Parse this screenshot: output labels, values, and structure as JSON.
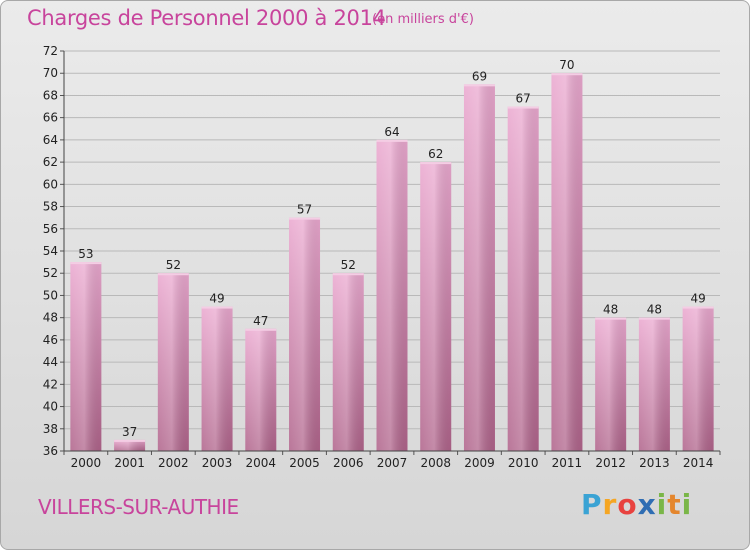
{
  "title": "Charges de Personnel 2000 à 2014",
  "subtitle": "(en milliers d'€)",
  "place": "VILLERS-SUR-AUTHIE",
  "logo": {
    "text": "Proxiti",
    "colors": [
      "#3aa3d4",
      "#f5a623",
      "#e8423f",
      "#2f6db3",
      "#7ab648",
      "#e4862d",
      "#7ab648"
    ]
  },
  "colors": {
    "bar_light": "#e9a8cf",
    "bar_dark": "#b5698f",
    "bar_top": "#f2c4df",
    "grid": "#bcbcbc",
    "text_accent": "#c8449c"
  },
  "chart_data": {
    "type": "bar",
    "title": "Charges de Personnel 2000 à 2014",
    "subtitle": "(en milliers d'€)",
    "categories": [
      "2000",
      "2001",
      "2002",
      "2003",
      "2004",
      "2005",
      "2006",
      "2007",
      "2008",
      "2009",
      "2010",
      "2011",
      "2012",
      "2013",
      "2014"
    ],
    "values": [
      53,
      37,
      52,
      49,
      47,
      57,
      52,
      64,
      62,
      69,
      67,
      70,
      48,
      48,
      49
    ],
    "ylim": [
      36,
      72
    ],
    "yticks": [
      36,
      38,
      40,
      42,
      44,
      46,
      48,
      50,
      52,
      54,
      56,
      58,
      60,
      62,
      64,
      66,
      68,
      70,
      72
    ],
    "grid": true,
    "data_labels": true
  }
}
